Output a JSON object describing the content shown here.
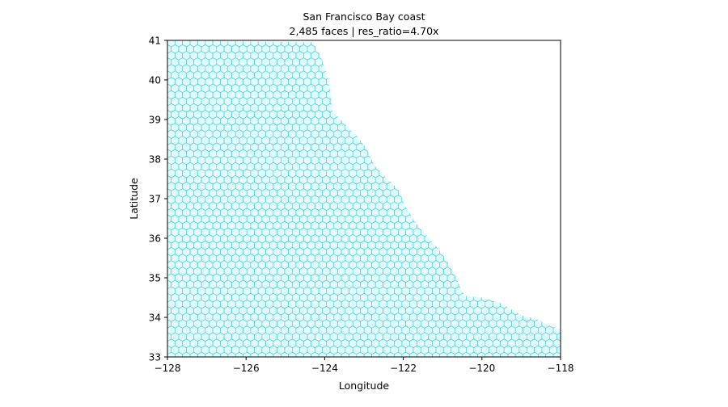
{
  "chart_data": {
    "type": "mesh",
    "title": "San Francisco Bay coast",
    "subtitle": "2,485 faces  |  res_ratio=4.70x",
    "xlabel": "Longitude",
    "ylabel": "Latitude",
    "xlim": [
      -128,
      -118
    ],
    "ylim": [
      33,
      41
    ],
    "xticks": [
      -128,
      -126,
      -124,
      -122,
      -120,
      -118
    ],
    "xtick_labels": [
      "−128",
      "−126",
      "−124",
      "−122",
      "−120",
      "−118"
    ],
    "yticks": [
      33,
      34,
      35,
      36,
      37,
      38,
      39,
      40,
      41
    ],
    "ytick_labels": [
      "33",
      "34",
      "35",
      "36",
      "37",
      "38",
      "39",
      "40",
      "41"
    ],
    "grid": false,
    "face_fill_color": "#e0ffff",
    "edge_color": "#3fbfd6",
    "region_east_boundary": [
      [
        -124.3,
        40.95
      ],
      [
        -124.1,
        40.6
      ],
      [
        -123.95,
        40.15
      ],
      [
        -123.85,
        39.7
      ],
      [
        -123.8,
        39.2
      ],
      [
        -123.5,
        38.9
      ],
      [
        -123.15,
        38.55
      ],
      [
        -122.9,
        38.2
      ],
      [
        -122.75,
        37.85
      ],
      [
        -122.45,
        37.55
      ],
      [
        -122.1,
        37.2
      ],
      [
        -121.95,
        36.8
      ],
      [
        -121.7,
        36.4
      ],
      [
        -121.35,
        36.0
      ],
      [
        -121.0,
        35.6
      ],
      [
        -120.75,
        35.2
      ],
      [
        -120.55,
        34.75
      ],
      [
        -120.45,
        34.55
      ],
      [
        -120.0,
        34.5
      ],
      [
        -119.5,
        34.35
      ],
      [
        -119.0,
        34.05
      ],
      [
        -118.6,
        33.95
      ],
      [
        -118.3,
        33.8
      ],
      [
        -118.0,
        33.7
      ],
      [
        -118.0,
        33.0
      ]
    ]
  }
}
